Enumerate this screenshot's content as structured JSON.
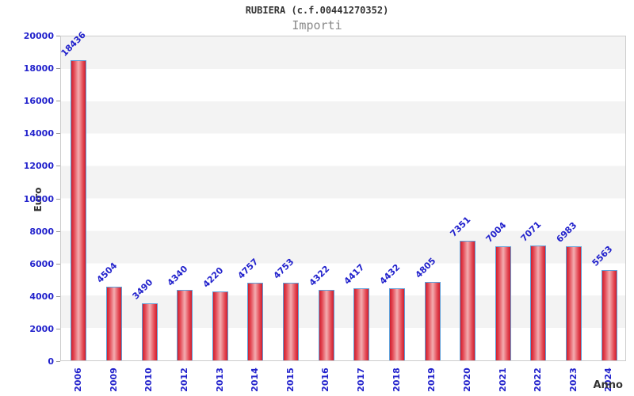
{
  "chart_data": {
    "type": "bar",
    "title": "RUBIERA (c.f.00441270352)",
    "subtitle": "Importi",
    "xlabel": "Anno",
    "ylabel": "Euro",
    "categories": [
      "2006",
      "2009",
      "2010",
      "2012",
      "2013",
      "2014",
      "2015",
      "2016",
      "2017",
      "2018",
      "2019",
      "2020",
      "2021",
      "2022",
      "2023",
      "2024"
    ],
    "values": [
      18436,
      4504,
      3490,
      4340,
      4220,
      4757,
      4753,
      4322,
      4417,
      4432,
      4805,
      7351,
      7004,
      7071,
      6983,
      5563
    ],
    "ylim": [
      0,
      20000
    ],
    "ytick_step": 2000,
    "grid": "horizontal-bands",
    "legend_position": "none",
    "colors": {
      "tick_label": "#2222cc",
      "value_label": "#2222cc",
      "bar_border": "#5f9fd8",
      "bar_edge_red": "#cf1f2e",
      "bar_mid_pink": "#f3adb0",
      "band_gray": "#f3f3f3",
      "band_white": "#ffffff",
      "plot_border": "#cccccc",
      "title_color": "#333333",
      "subtitle_color": "#888888",
      "axis_title_color": "#333333",
      "tick_mark": "#999999"
    }
  }
}
